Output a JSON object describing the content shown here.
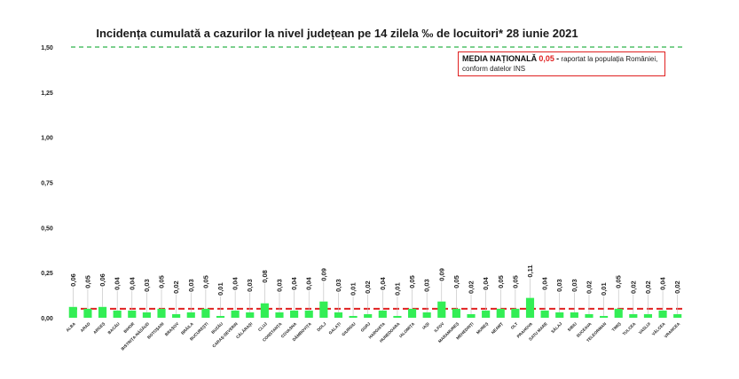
{
  "chart_data": {
    "type": "bar",
    "title": "Incidența cumulată a cazurilor la nivel județean pe 14 zilela ‰ de locuitori*  28 iunie 2021",
    "xlabel": "",
    "ylabel": "",
    "ylim": [
      0,
      1.5
    ],
    "yticks": [
      "0,00",
      "0,25",
      "0,50",
      "0,75",
      "1,00",
      "1,25",
      "1,50"
    ],
    "categories": [
      "ALBA",
      "ARAD",
      "ARGEȘ",
      "BACĂU",
      "BIHOR",
      "BISTRIȚA-NĂSĂUD",
      "BOTOȘANI",
      "BRAȘOV",
      "BRĂILA",
      "BUCUREȘTI",
      "BUZĂU",
      "CARAȘ-SEVERIN",
      "CĂLĂRAȘI",
      "CLUJ",
      "CONSTANȚA",
      "COVASNA",
      "DÂMBOVIȚA",
      "DOLJ",
      "GALAȚI",
      "GIURGIU",
      "GORJ",
      "HARGHITA",
      "HUNEDOARA",
      "IALOMIȚA",
      "IAȘI",
      "ILFOV",
      "MARAMUREȘ",
      "MEHEDINȚI",
      "MUREȘ",
      "NEAMȚ",
      "OLT",
      "PRAHOVA",
      "SATU MARE",
      "SĂLAJ",
      "SIBIU",
      "SUCEAVA",
      "TELEORMAN",
      "TIMIȘ",
      "TULCEA",
      "VASLUI",
      "VÂLCEA",
      "VRANCEA"
    ],
    "values": [
      0.06,
      0.05,
      0.06,
      0.04,
      0.04,
      0.03,
      0.05,
      0.02,
      0.03,
      0.05,
      0.01,
      0.04,
      0.03,
      0.08,
      0.03,
      0.04,
      0.04,
      0.09,
      0.03,
      0.01,
      0.02,
      0.04,
      0.01,
      0.05,
      0.03,
      0.09,
      0.05,
      0.02,
      0.04,
      0.05,
      0.05,
      0.11,
      0.04,
      0.03,
      0.03,
      0.02,
      0.01,
      0.05,
      0.02,
      0.02,
      0.04,
      0.02
    ],
    "value_labels": [
      "0,06",
      "0,05",
      "0,06",
      "0,04",
      "0,04",
      "0,03",
      "0,05",
      "0,02",
      "0,03",
      "0,05",
      "0,01",
      "0,04",
      "0,03",
      "0,08",
      "0,03",
      "0,04",
      "0,04",
      "0,09",
      "0,03",
      "0,01",
      "0,02",
      "0,04",
      "0,01",
      "0,05",
      "0,03",
      "0,09",
      "0,05",
      "0,02",
      "0,04",
      "0,05",
      "0,05",
      "0,11",
      "0,04",
      "0,03",
      "0,03",
      "0,02",
      "0,01",
      "0,05",
      "0,02",
      "0,02",
      "0,04",
      "0,02"
    ],
    "reference_lines": [
      {
        "value": 1.5,
        "style": "dashed",
        "color": "#2db34a"
      },
      {
        "value": 0.05,
        "style": "dashed",
        "color": "#e02020"
      }
    ],
    "bar_color": "#33ee55",
    "grid": false
  },
  "annotation": {
    "lead": "MEDIA NAȚIONALĂ",
    "value": "0,05",
    "separator": "-",
    "text": "raportat la populația României, conform datelor INS"
  }
}
